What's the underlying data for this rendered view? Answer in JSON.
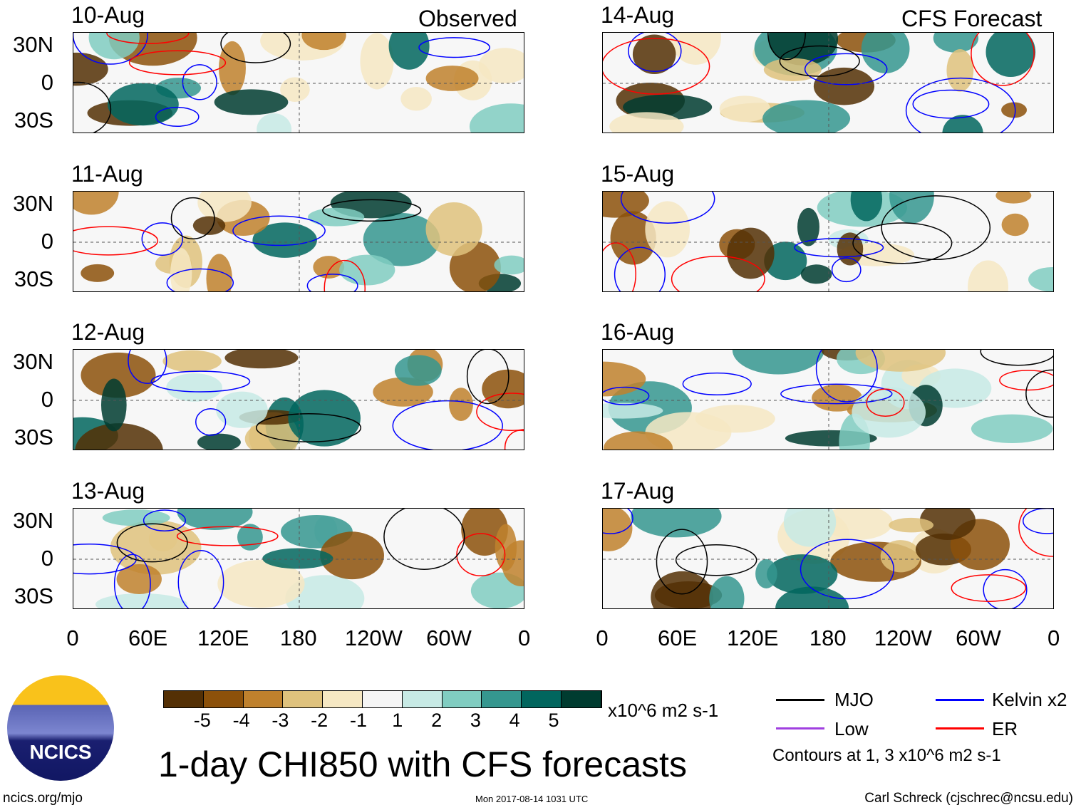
{
  "title": "1-day CHI850 with CFS forecasts",
  "columns": {
    "observed": "Observed",
    "forecast": "CFS Forecast"
  },
  "panels": {
    "observed": [
      "10-Aug",
      "11-Aug",
      "12-Aug",
      "13-Aug"
    ],
    "forecast": [
      "14-Aug",
      "15-Aug",
      "16-Aug",
      "17-Aug"
    ]
  },
  "y_ticks": [
    "30N",
    "0",
    "30S"
  ],
  "x_ticks": [
    "0",
    "60E",
    "120E",
    "180",
    "120W",
    "60W",
    "0"
  ],
  "colorbar": {
    "colors": [
      "#543005",
      "#8c510a",
      "#bf812d",
      "#dfc27d",
      "#f6e8c3",
      "#f5f5f5",
      "#c7eae5",
      "#80cdc1",
      "#35978f",
      "#01665e",
      "#003c30"
    ],
    "labels": [
      "-5",
      "-4",
      "-3",
      "-2",
      "-1",
      "1",
      "2",
      "3",
      "4",
      "5"
    ],
    "units": "x10^6 m2 s-1"
  },
  "legend": {
    "items": [
      {
        "label": "MJO",
        "color": "#000000"
      },
      {
        "label": "Kelvin x2",
        "color": "#0000ff"
      },
      {
        "label": "Low",
        "color": "#a040e0"
      },
      {
        "label": "ER",
        "color": "#ff0000"
      }
    ],
    "note": "Contours at 1, 3 x10^6 m2 s-1"
  },
  "logo": "NCICS",
  "footer": {
    "url": "ncics.org/mjo",
    "timestamp": "Mon 2017-08-14 1031 UTC",
    "author": "Carl Schreck (cjschrec@ncsu.edu)"
  }
}
